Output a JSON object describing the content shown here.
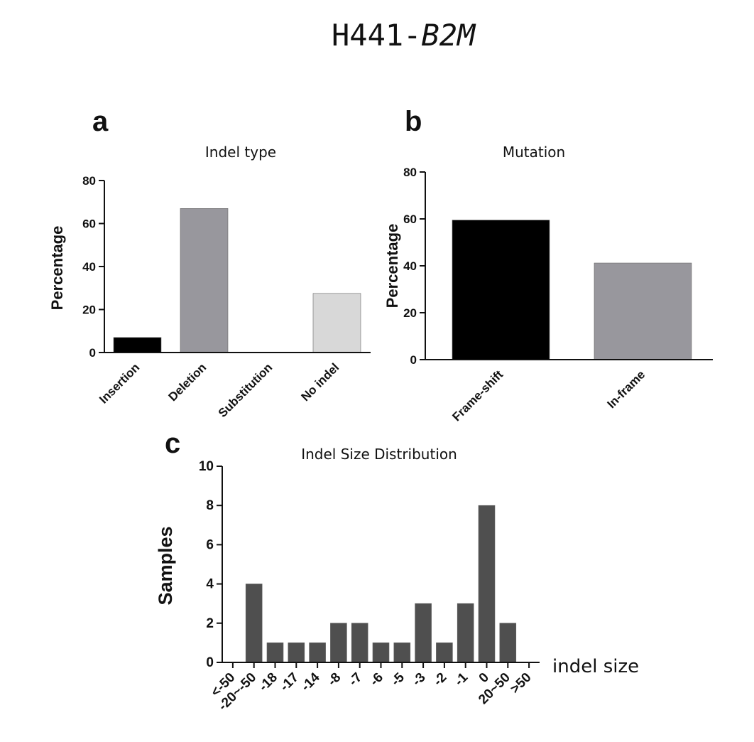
{
  "figure_title": {
    "cell_line": "H441-",
    "gene": "B2M"
  },
  "chart_data": [
    {
      "panel": "a",
      "type": "bar",
      "title": "Indel type",
      "ylabel": "Percentage",
      "xlabel": "",
      "ylim": [
        0,
        80
      ],
      "yticks": [
        0,
        20,
        40,
        60,
        80
      ],
      "categories": [
        "Insertion",
        "Deletion",
        "Substitution",
        "No indel"
      ],
      "values": [
        7,
        67,
        0,
        27.5
      ],
      "colors": [
        "#000000",
        "#98979d",
        "#ffffff",
        "#d8d8d8"
      ]
    },
    {
      "panel": "b",
      "type": "bar",
      "title": "Mutation",
      "ylabel": "Percentage",
      "xlabel": "",
      "ylim": [
        0,
        80
      ],
      "yticks": [
        0,
        20,
        40,
        60,
        80
      ],
      "categories": [
        "Frame-shift",
        "In-frame"
      ],
      "values": [
        59.5,
        41.2
      ],
      "colors": [
        "#000000",
        "#98979d"
      ]
    },
    {
      "panel": "c",
      "type": "bar",
      "title": "Indel Size Distribution",
      "ylabel": "Samples",
      "xlabel": "indel size",
      "ylim": [
        0,
        10
      ],
      "yticks": [
        0,
        2,
        4,
        6,
        8,
        10
      ],
      "categories": [
        "<-50",
        "-20~-50",
        "-18",
        "-17",
        "-14",
        "-8",
        "-7",
        "-6",
        "-5",
        "-3",
        "-2",
        "-1",
        "0",
        "20~50",
        ">50"
      ],
      "values": [
        0,
        4,
        1,
        1,
        1,
        2,
        2,
        1,
        1,
        3,
        1,
        3,
        8,
        2,
        0
      ],
      "colors": [
        "#4f4f4f"
      ]
    }
  ]
}
